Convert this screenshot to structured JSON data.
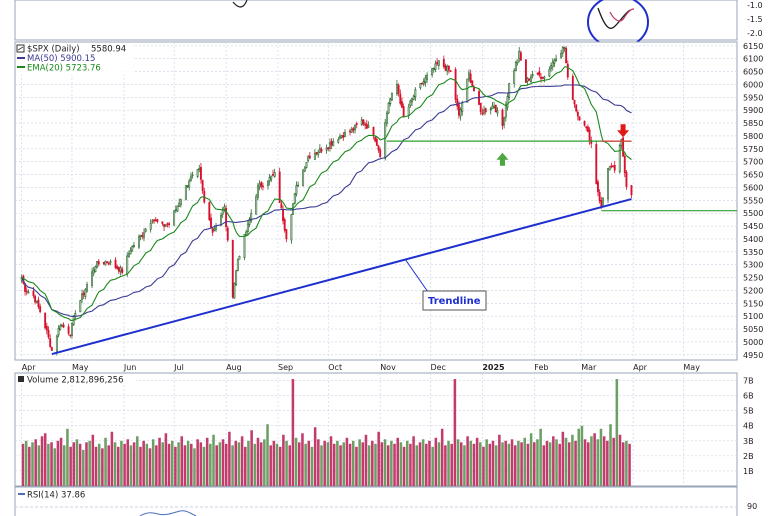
{
  "colors": {
    "up": "#2f6b2f",
    "down": "#d8112c",
    "ma50": "#3b3b94",
    "ema20": "#1b8a1b",
    "trend": "#1e2fd0",
    "level": "#2ea02e",
    "resist": "#e0383a",
    "arrow_green": "#4aa83c",
    "arrow_red": "#e01818",
    "vol_up": "#6c9e66",
    "vol_down": "#c23b6c",
    "rsi": "#4a6fc0",
    "panel_bg": "#eef2fa",
    "grid": "#c9d1e3"
  },
  "top_panel": {
    "ticks": [
      "-1.0",
      "-1.5",
      "-2.0"
    ]
  },
  "price_panel": {
    "legend_symbol": "$SPX (Daily)",
    "legend_close": "5580.94",
    "legend_ma": "MA(50) 5900.15",
    "legend_ema": "EMA(20) 5723.76",
    "annotation": "Trendline",
    "y_ticks": [
      "6150",
      "6100",
      "6050",
      "6000",
      "5950",
      "5900",
      "5850",
      "5800",
      "5750",
      "5700",
      "5650",
      "5600",
      "5550",
      "5500",
      "5450",
      "5400",
      "5350",
      "5300",
      "5250",
      "5200",
      "5150",
      "5100",
      "5050",
      "5000",
      "4950"
    ],
    "x_ticks": [
      "Apr",
      "May",
      "Jun",
      "Jul",
      "Aug",
      "Sep",
      "Oct",
      "Nov",
      "Dec",
      "2025",
      "Feb",
      "Mar",
      "Apr",
      "May"
    ]
  },
  "volume_panel": {
    "legend": "Volume 2,812,896,256",
    "y_ticks": [
      "7B",
      "6B",
      "5B",
      "4B",
      "3B",
      "2B",
      "1B"
    ]
  },
  "rsi_panel": {
    "legend": "RSI(14) 37.86",
    "y_ticks": [
      "90"
    ]
  },
  "chart_data": {
    "type": "candlestick",
    "symbol": "$SPX",
    "ylim": [
      4930,
      6165
    ],
    "last_close": 5580.94,
    "ma50_last": 5900.15,
    "ema20_last": 5723.76,
    "support_level": 5780,
    "march_low_level": 5510,
    "trendline": [
      {
        "date": "2024-04-19",
        "value": 4953
      },
      {
        "date": "2025-03-31",
        "value": 5555
      }
    ],
    "price_path": [
      [
        "2024-04-01",
        5250
      ],
      [
        "2024-04-03",
        5205
      ],
      [
        "2024-04-08",
        5180
      ],
      [
        "2024-04-12",
        5120
      ],
      [
        "2024-04-16",
        5040
      ],
      [
        "2024-04-19",
        4967
      ],
      [
        "2024-04-24",
        5070
      ],
      [
        "2024-04-30",
        5035
      ],
      [
        "2024-05-03",
        5120
      ],
      [
        "2024-05-08",
        5190
      ],
      [
        "2024-05-15",
        5300
      ],
      [
        "2024-05-22",
        5315
      ],
      [
        "2024-05-31",
        5275
      ],
      [
        "2024-06-05",
        5360
      ],
      [
        "2024-06-12",
        5420
      ],
      [
        "2024-06-18",
        5480
      ],
      [
        "2024-06-24",
        5450
      ],
      [
        "2024-06-28",
        5460
      ],
      [
        "2024-07-03",
        5530
      ],
      [
        "2024-07-10",
        5630
      ],
      [
        "2024-07-16",
        5665
      ],
      [
        "2024-07-19",
        5540
      ],
      [
        "2024-07-24",
        5430
      ],
      [
        "2024-07-31",
        5520
      ],
      [
        "2024-08-05",
        5185
      ],
      [
        "2024-08-08",
        5320
      ],
      [
        "2024-08-14",
        5450
      ],
      [
        "2024-08-20",
        5600
      ],
      [
        "2024-08-30",
        5650
      ],
      [
        "2024-09-06",
        5410
      ],
      [
        "2024-09-12",
        5600
      ],
      [
        "2024-09-19",
        5720
      ],
      [
        "2024-09-30",
        5760
      ],
      [
        "2024-10-08",
        5800
      ],
      [
        "2024-10-15",
        5820
      ],
      [
        "2024-10-21",
        5860
      ],
      [
        "2024-10-28",
        5810
      ],
      [
        "2024-11-01",
        5730
      ],
      [
        "2024-11-06",
        5930
      ],
      [
        "2024-11-11",
        6000
      ],
      [
        "2024-11-15",
        5870
      ],
      [
        "2024-11-22",
        5970
      ],
      [
        "2024-11-29",
        6030
      ],
      [
        "2024-12-06",
        6085
      ],
      [
        "2024-12-13",
        6050
      ],
      [
        "2024-12-18",
        5875
      ],
      [
        "2024-12-24",
        6040
      ],
      [
        "2024-12-31",
        5890
      ],
      [
        "2025-01-08",
        5920
      ],
      [
        "2025-01-13",
        5840
      ],
      [
        "2025-01-17",
        6000
      ],
      [
        "2025-01-23",
        6120
      ],
      [
        "2025-01-27",
        6010
      ],
      [
        "2025-01-31",
        6040
      ],
      [
        "2025-02-07",
        6030
      ],
      [
        "2025-02-14",
        6110
      ],
      [
        "2025-02-19",
        6145
      ],
      [
        "2025-02-21",
        6020
      ],
      [
        "2025-02-27",
        5880
      ],
      [
        "2025-03-03",
        5850
      ],
      [
        "2025-03-07",
        5770
      ],
      [
        "2025-03-10",
        5620
      ],
      [
        "2025-03-13",
        5520
      ],
      [
        "2025-03-17",
        5680
      ],
      [
        "2025-03-21",
        5670
      ],
      [
        "2025-03-25",
        5780
      ],
      [
        "2025-03-28",
        5610
      ],
      [
        "2025-03-31",
        5580
      ]
    ],
    "volume_scale_billion": [
      0,
      7.5
    ]
  },
  "volume_data": [
    [
      2.8,
      0
    ],
    [
      3.0,
      1
    ],
    [
      2.6,
      0
    ],
    [
      2.9,
      1
    ],
    [
      3.1,
      0
    ],
    [
      2.7,
      1
    ],
    [
      3.3,
      0
    ],
    [
      3.5,
      0
    ],
    [
      2.8,
      1
    ],
    [
      2.9,
      0
    ],
    [
      2.5,
      1
    ],
    [
      3.0,
      0
    ],
    [
      3.2,
      0
    ],
    [
      2.7,
      1
    ],
    [
      3.8,
      1
    ],
    [
      2.6,
      0
    ],
    [
      2.9,
      0
    ],
    [
      3.1,
      1
    ],
    [
      2.8,
      0
    ],
    [
      2.4,
      1
    ],
    [
      2.9,
      0
    ],
    [
      3.0,
      1
    ],
    [
      3.4,
      0
    ],
    [
      2.6,
      0
    ],
    [
      2.8,
      1
    ],
    [
      2.5,
      0
    ],
    [
      3.2,
      1
    ],
    [
      2.7,
      0
    ],
    [
      3.6,
      0
    ],
    [
      2.9,
      1
    ],
    [
      2.6,
      0
    ],
    [
      3.0,
      1
    ],
    [
      2.8,
      0
    ],
    [
      3.1,
      0
    ],
    [
      2.7,
      1
    ],
    [
      2.9,
      0
    ],
    [
      3.3,
      1
    ],
    [
      2.6,
      0
    ],
    [
      3.0,
      0
    ],
    [
      2.8,
      1
    ],
    [
      2.5,
      0
    ],
    [
      3.1,
      1
    ],
    [
      2.7,
      0
    ],
    [
      3.2,
      0
    ],
    [
      2.9,
      1
    ],
    [
      3.5,
      0
    ],
    [
      2.8,
      0
    ],
    [
      3.0,
      1
    ],
    [
      2.6,
      0
    ],
    [
      2.9,
      1
    ],
    [
      3.3,
      0
    ],
    [
      2.7,
      0
    ],
    [
      3.0,
      1
    ],
    [
      2.8,
      0
    ],
    [
      2.5,
      1
    ],
    [
      3.1,
      0
    ],
    [
      2.9,
      0
    ],
    [
      2.6,
      1
    ],
    [
      3.2,
      0
    ],
    [
      2.8,
      1
    ],
    [
      3.4,
      1
    ],
    [
      2.7,
      0
    ],
    [
      2.9,
      1
    ],
    [
      3.1,
      0
    ],
    [
      2.8,
      0
    ],
    [
      3.6,
      0
    ],
    [
      2.7,
      1
    ],
    [
      3.0,
      0
    ],
    [
      2.9,
      1
    ],
    [
      3.3,
      0
    ],
    [
      2.6,
      0
    ],
    [
      3.0,
      1
    ],
    [
      3.7,
      0
    ],
    [
      2.8,
      1
    ],
    [
      3.2,
      0
    ],
    [
      2.9,
      0
    ],
    [
      3.1,
      1
    ],
    [
      4.1,
      1
    ],
    [
      2.7,
      0
    ],
    [
      3.0,
      0
    ],
    [
      2.8,
      1
    ],
    [
      2.6,
      0
    ],
    [
      3.4,
      0
    ],
    [
      3.0,
      1
    ],
    [
      2.7,
      0
    ],
    [
      7.1,
      0
    ],
    [
      3.2,
      1
    ],
    [
      2.9,
      0
    ],
    [
      3.5,
      0
    ],
    [
      2.8,
      1
    ],
    [
      3.0,
      0
    ],
    [
      2.6,
      1
    ],
    [
      3.9,
      0
    ],
    [
      3.1,
      0
    ],
    [
      2.7,
      1
    ],
    [
      3.0,
      0
    ],
    [
      2.9,
      1
    ],
    [
      3.3,
      0
    ],
    [
      2.8,
      0
    ],
    [
      3.0,
      1
    ],
    [
      2.7,
      0
    ],
    [
      2.9,
      1
    ],
    [
      3.2,
      0
    ],
    [
      2.8,
      0
    ],
    [
      3.0,
      1
    ],
    [
      2.6,
      0
    ],
    [
      3.1,
      1
    ],
    [
      2.9,
      0
    ],
    [
      3.4,
      0
    ],
    [
      2.7,
      1
    ],
    [
      3.0,
      0
    ],
    [
      2.8,
      1
    ],
    [
      3.6,
      0
    ],
    [
      2.9,
      0
    ],
    [
      3.1,
      1
    ],
    [
      2.7,
      0
    ],
    [
      3.0,
      1
    ],
    [
      2.8,
      0
    ],
    [
      3.2,
      0
    ],
    [
      2.9,
      1
    ],
    [
      2.6,
      0
    ],
    [
      3.0,
      1
    ],
    [
      2.8,
      0
    ],
    [
      3.3,
      0
    ],
    [
      2.7,
      1
    ],
    [
      2.9,
      0
    ],
    [
      3.1,
      1
    ],
    [
      2.8,
      0
    ],
    [
      3.0,
      0
    ],
    [
      2.6,
      1
    ],
    [
      3.2,
      0
    ],
    [
      2.9,
      1
    ],
    [
      3.8,
      0
    ],
    [
      2.7,
      0
    ],
    [
      3.0,
      1
    ],
    [
      2.8,
      0
    ],
    [
      7.1,
      0
    ],
    [
      3.1,
      1
    ],
    [
      2.9,
      0
    ],
    [
      2.7,
      1
    ],
    [
      3.3,
      0
    ],
    [
      3.0,
      1
    ],
    [
      2.8,
      0
    ],
    [
      3.2,
      0
    ],
    [
      2.9,
      1
    ],
    [
      2.6,
      0
    ],
    [
      3.1,
      1
    ],
    [
      2.8,
      0
    ],
    [
      3.0,
      0
    ],
    [
      2.7,
      1
    ],
    [
      3.4,
      0
    ],
    [
      2.9,
      1
    ],
    [
      3.0,
      0
    ],
    [
      2.8,
      1
    ],
    [
      3.1,
      0
    ],
    [
      2.7,
      0
    ],
    [
      3.0,
      1
    ],
    [
      2.9,
      0
    ],
    [
      3.2,
      1
    ],
    [
      2.8,
      0
    ],
    [
      3.5,
      1
    ],
    [
      2.9,
      0
    ],
    [
      3.1,
      1
    ],
    [
      3.8,
      1
    ],
    [
      2.7,
      0
    ],
    [
      3.0,
      0
    ],
    [
      2.9,
      1
    ],
    [
      3.3,
      0
    ],
    [
      3.1,
      1
    ],
    [
      2.8,
      0
    ],
    [
      3.6,
      0
    ],
    [
      3.2,
      1
    ],
    [
      2.9,
      0
    ],
    [
      3.4,
      1
    ],
    [
      3.0,
      0
    ],
    [
      3.8,
      1
    ],
    [
      4.0,
      1
    ],
    [
      3.1,
      0
    ],
    [
      2.9,
      0
    ],
    [
      3.3,
      1
    ],
    [
      3.5,
      0
    ],
    [
      3.1,
      1
    ],
    [
      3.8,
      1
    ],
    [
      3.3,
      0
    ],
    [
      3.0,
      0
    ],
    [
      4.1,
      1
    ],
    [
      3.2,
      0
    ],
    [
      7.1,
      1
    ],
    [
      3.4,
      0
    ],
    [
      2.9,
      0
    ],
    [
      3.0,
      1
    ],
    [
      2.8,
      0
    ]
  ]
}
